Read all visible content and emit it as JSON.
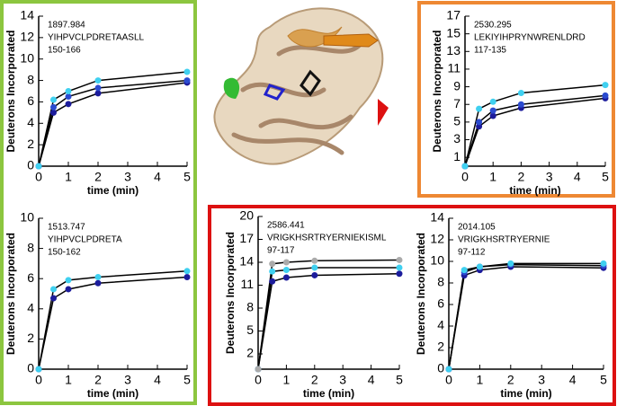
{
  "chart_data": [
    {
      "type": "line",
      "annotations": [
        "1897.984",
        "YIHPVCLPDRETAASLL",
        "150-166"
      ],
      "ylabel": "Deuterons Incorporated",
      "xlabel": "time (min)",
      "x": [
        0,
        0.5,
        1,
        2,
        5
      ],
      "xlim": [
        0,
        5
      ],
      "xticks": [
        0,
        1,
        2,
        3,
        4,
        5
      ],
      "ylim": [
        0,
        14
      ],
      "yticks": [
        0,
        2,
        4,
        6,
        8,
        10,
        12,
        14
      ],
      "series": [
        {
          "color": "#1c1c9c",
          "values": [
            0,
            5,
            5.8,
            6.8,
            7.8
          ]
        },
        {
          "color": "#2b4bd0",
          "values": [
            0,
            5.5,
            6.5,
            7.3,
            8
          ]
        },
        {
          "color": "#3fd0f0",
          "values": [
            0,
            6.2,
            7,
            8,
            8.8
          ]
        }
      ]
    },
    {
      "type": "line",
      "annotations": [
        "1513.747",
        "YIHPVCLPDRETA",
        "150-162"
      ],
      "ylabel": "Deuterons Incorporated",
      "xlabel": "time (min)",
      "x": [
        0,
        0.5,
        1,
        2,
        5
      ],
      "xlim": [
        0,
        5
      ],
      "xticks": [
        0,
        1,
        2,
        3,
        4,
        5
      ],
      "ylim": [
        0,
        10
      ],
      "yticks": [
        0,
        2,
        4,
        6,
        8,
        10
      ],
      "series": [
        {
          "color": "#1c1c9c",
          "values": [
            0,
            4.7,
            5.3,
            5.7,
            6.1
          ]
        },
        {
          "color": "#3fd0f0",
          "values": [
            0,
            5.3,
            5.9,
            6.1,
            6.5
          ]
        }
      ]
    },
    {
      "type": "line",
      "annotations": [
        "2530.295",
        "LEKIYIHPRYNWRENLDRD",
        "117-135"
      ],
      "ylabel": "Deuterons Incorporated",
      "xlabel": "time (min)",
      "x": [
        0,
        0.5,
        1,
        2,
        5
      ],
      "xlim": [
        0,
        5
      ],
      "xticks": [
        0,
        1,
        2,
        3,
        4,
        5
      ],
      "ylim": [
        0,
        17
      ],
      "yticks": [
        1,
        3,
        5,
        7,
        9,
        11,
        13,
        15,
        17
      ],
      "series": [
        {
          "color": "#1c1c9c",
          "values": [
            0,
            4.5,
            5.7,
            6.6,
            7.7
          ]
        },
        {
          "color": "#2b4bd0",
          "values": [
            0,
            5,
            6.3,
            7,
            8
          ]
        },
        {
          "color": "#3fd0f0",
          "values": [
            0,
            6.5,
            7.3,
            8.3,
            9.2
          ]
        }
      ]
    },
    {
      "type": "line",
      "annotations": [
        "2586.441",
        "VRIGKHSRTRYERNIEKISML",
        "97-117"
      ],
      "ylabel": "Deuterons Incorporated",
      "xlabel": "time (min)",
      "x": [
        0,
        0.5,
        1,
        2,
        5
      ],
      "xlim": [
        0,
        5
      ],
      "xticks": [
        0,
        1,
        2,
        3,
        4,
        5
      ],
      "ylim": [
        0,
        20
      ],
      "yticks": [
        2,
        5,
        8,
        11,
        14,
        17,
        20
      ],
      "series": [
        {
          "color": "#1c1c9c",
          "values": [
            0,
            11.5,
            12,
            12.3,
            12.5
          ]
        },
        {
          "color": "#3fd0f0",
          "values": [
            0,
            12.8,
            13,
            13.3,
            13.3
          ]
        },
        {
          "color": "#aaaaaa",
          "values": [
            0,
            13.8,
            14,
            14.2,
            14.3
          ]
        }
      ]
    },
    {
      "type": "line",
      "annotations": [
        "2014.105",
        "VRIGKHSRTRYERNIE",
        "97-112"
      ],
      "ylabel": "Deuterons Incorporated",
      "xlabel": "time (min)",
      "x": [
        0,
        0.5,
        1,
        2,
        5
      ],
      "xlim": [
        0,
        5
      ],
      "xticks": [
        0,
        1,
        2,
        3,
        4,
        5
      ],
      "ylim": [
        0,
        14
      ],
      "yticks": [
        0,
        2,
        4,
        6,
        8,
        10,
        12,
        14
      ],
      "series": [
        {
          "color": "#1c1c9c",
          "values": [
            0,
            8.7,
            9.2,
            9.5,
            9.4
          ]
        },
        {
          "color": "#2b4bd0",
          "values": [
            0,
            9,
            9.5,
            9.7,
            9.6
          ]
        },
        {
          "color": "#3fd0f0",
          "values": [
            0,
            9.2,
            9.5,
            9.8,
            9.8
          ]
        }
      ]
    }
  ]
}
